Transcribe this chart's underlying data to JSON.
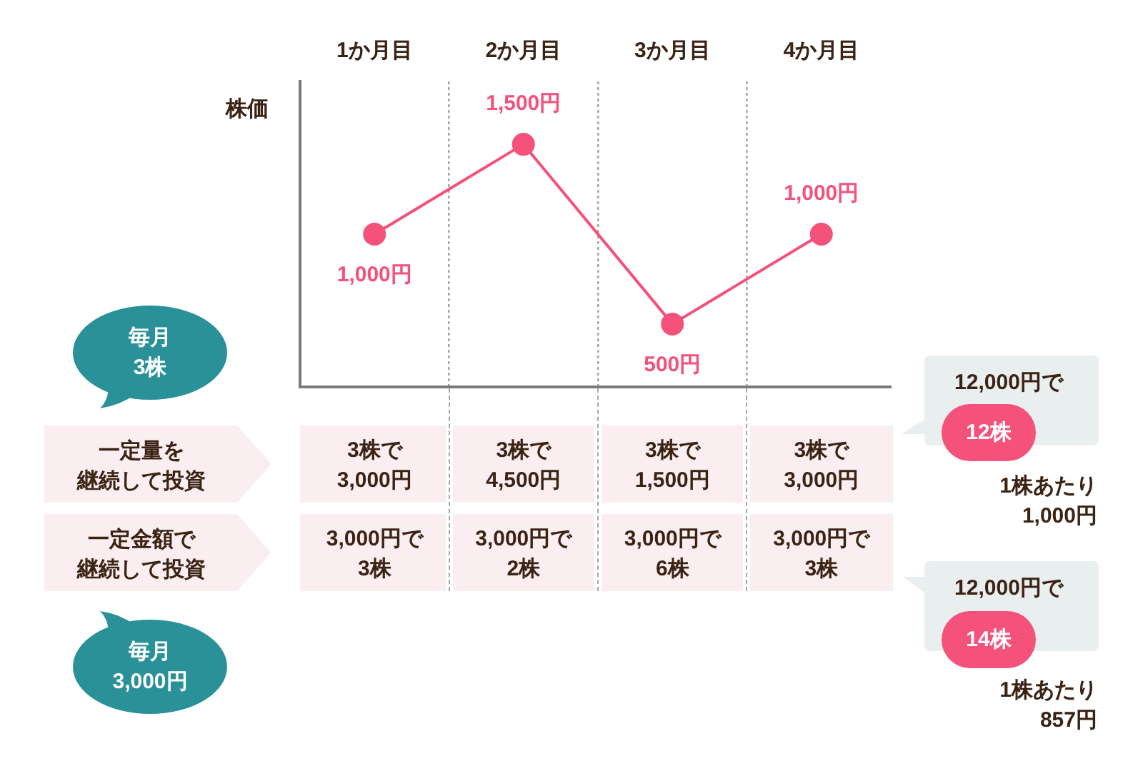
{
  "chart_data": {
    "type": "line",
    "categories": [
      "1か月目",
      "2か月目",
      "3か月目",
      "4か月目"
    ],
    "ylabel": "株価",
    "values": [
      1000,
      1500,
      500,
      1000
    ],
    "color": "#f4517b",
    "value_labels": [
      "1,000円",
      "1,500円",
      "500円",
      "1,000円"
    ],
    "ylim": [
      150,
      1850
    ],
    "tick_labels": "x",
    "grid": "x",
    "marker": "circle",
    "annotations": [
      "毎月\n3株",
      "一定量を",
      "継続して投資",
      "3株で\n3,000円",
      "3株で\n4,500円",
      "3株で\n1,500円",
      "3株で\n3,000円",
      "一定金額で",
      "継続して投資",
      "3,000円で\n3株",
      "3,000円で\n2株",
      "3,000円で\n6株",
      "3,000円で\n3株",
      "毎月\n3,000円",
      "12,000円で",
      "12株",
      "1株あたり\n1,000円",
      "12,000円で",
      "14株",
      "1株あたり\n857円"
    ]
  }
}
